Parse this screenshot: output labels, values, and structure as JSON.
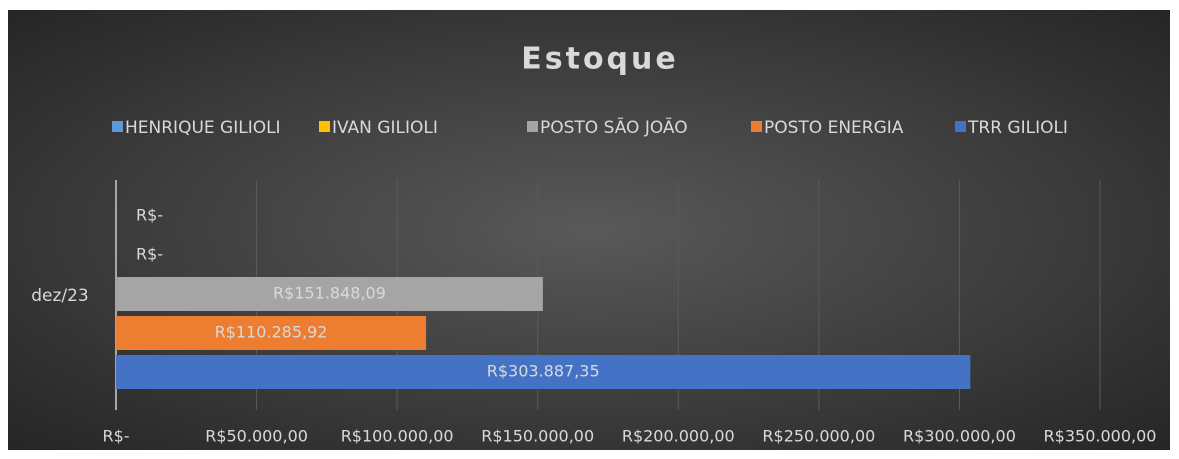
{
  "chart_data": {
    "type": "bar",
    "orientation": "horizontal",
    "title": "Estoque",
    "categories": [
      "dez/23"
    ],
    "series": [
      {
        "name": "HENRIQUE GILIOLI",
        "color": "#5b9bd5",
        "values": [
          0
        ],
        "value_labels": [
          "R$-"
        ]
      },
      {
        "name": "IVAN GILIOLI",
        "color": "#ffc000",
        "values": [
          0
        ],
        "value_labels": [
          "R$-"
        ]
      },
      {
        "name": "POSTO SÃO JOÃO",
        "color": "#a5a5a5",
        "values": [
          151848.09
        ],
        "value_labels": [
          "R$151.848,09"
        ]
      },
      {
        "name": "POSTO ENERGIA",
        "color": "#ed7d31",
        "values": [
          110285.92
        ],
        "value_labels": [
          "R$110.285,92"
        ]
      },
      {
        "name": "TRR GILIOLI",
        "color": "#4472c4",
        "values": [
          303887.35
        ],
        "value_labels": [
          "R$303.887,35"
        ]
      }
    ],
    "xlim": [
      0,
      350000
    ],
    "xticks": [
      {
        "value": 0,
        "label": "R$-"
      },
      {
        "value": 50000,
        "label": "R$50.000,00"
      },
      {
        "value": 100000,
        "label": "R$100.000,00"
      },
      {
        "value": 150000,
        "label": "R$150.000,00"
      },
      {
        "value": 200000,
        "label": "R$200.000,00"
      },
      {
        "value": 250000,
        "label": "R$250.000,00"
      },
      {
        "value": 300000,
        "label": "R$300.000,00"
      },
      {
        "value": 350000,
        "label": "R$350.000,00"
      }
    ],
    "grid": true,
    "legend": "top"
  }
}
